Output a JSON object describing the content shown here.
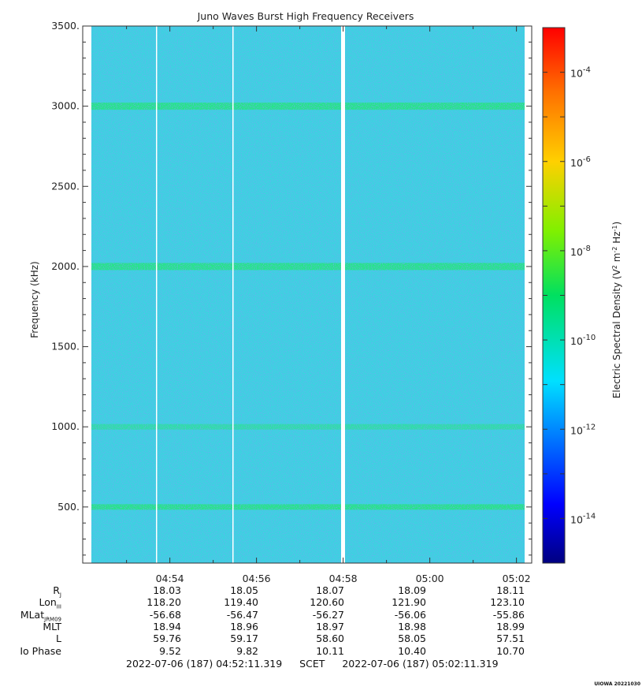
{
  "chart_data": {
    "type": "heatmap",
    "title": "Juno Waves Burst High Frequency Receivers",
    "ylabel": "Frequency (kHz)",
    "ylim": [
      150,
      3500
    ],
    "yticks": [
      {
        "value": 500,
        "label": "500."
      },
      {
        "value": 1000,
        "label": "1000."
      },
      {
        "value": 1500,
        "label": "1500."
      },
      {
        "value": 2000,
        "label": "2000."
      },
      {
        "value": 2500,
        "label": "2500."
      },
      {
        "value": 3000,
        "label": "3000."
      },
      {
        "value": 3500,
        "label": "3500."
      }
    ],
    "xlim": [
      "04:52:11.319",
      "05:02:11.319"
    ],
    "xticks": [
      "04:54",
      "04:56",
      "04:58",
      "05:00",
      "05:02"
    ],
    "emission_bands_khz": [
      500,
      1000,
      2000,
      3000
    ],
    "colorbar": {
      "label": "Electric Spectral Density (V2 m-2 Hz-1)",
      "scale": "log",
      "range_exp": [
        -15,
        -3
      ],
      "tick_exponents": [
        -4,
        -6,
        -8,
        -10,
        -12,
        -14
      ]
    },
    "background_level_exp": -12
  },
  "ephemeris": {
    "rows": [
      {
        "label": "R",
        "sub": "J",
        "values": [
          "18.03",
          "18.05",
          "18.07",
          "18.09",
          "18.11"
        ]
      },
      {
        "label": "Lon",
        "sub": "III",
        "values": [
          "118.20",
          "119.40",
          "120.60",
          "121.90",
          "123.10"
        ]
      },
      {
        "label": "MLat",
        "sub": "JRM09",
        "values": [
          "-56.68",
          "-56.47",
          "-56.27",
          "-56.06",
          "-55.86"
        ]
      },
      {
        "label": "MLT",
        "sub": "",
        "values": [
          "18.94",
          "18.96",
          "18.97",
          "18.98",
          "18.99"
        ]
      },
      {
        "label": "L",
        "sub": "",
        "values": [
          "59.76",
          "59.17",
          "58.60",
          "58.05",
          "57.51"
        ]
      },
      {
        "label": "Io Phase",
        "sub": "",
        "values": [
          "9.52",
          "9.82",
          "10.11",
          "10.40",
          "10.70"
        ]
      }
    ]
  },
  "footer": {
    "start": "2022-07-06 (187) 04:52:11.319",
    "frame": "SCET",
    "end": "2022-07-06 (187) 05:02:11.319"
  },
  "stamp": "UIOWA 20221030",
  "colors": {
    "background": "#3cd2e0",
    "band": "#22e87a",
    "speckle": "#2a6ee8"
  }
}
